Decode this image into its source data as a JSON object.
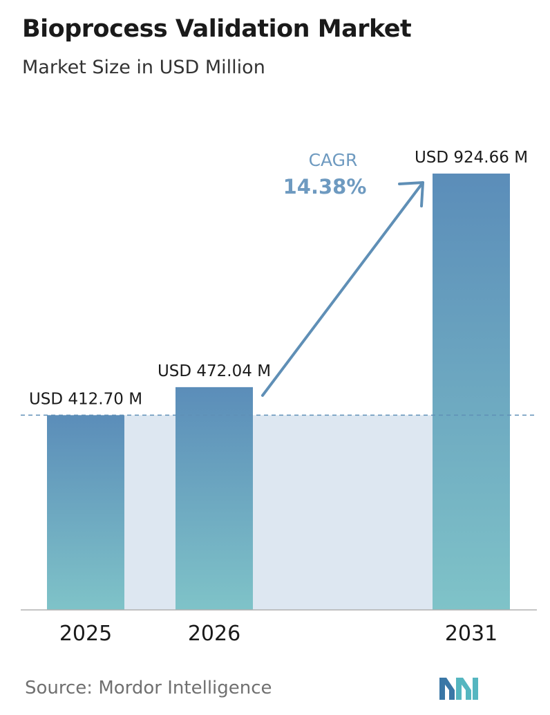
{
  "title": "Bioprocess Validation Market",
  "subtitle": "Market Size in USD Million",
  "source": "Source:  Mordor Intelligence",
  "colors": {
    "bar_top": "#5b8db9",
    "bar_bottom": "#7fc3c8",
    "band": "#dde7f1",
    "arrow": "#5f8fb6",
    "cagr_text": "#6e9ac0",
    "logo_left": "#3a77a6",
    "logo_right": "#55b6c0"
  },
  "logo": "mordor-intelligence-logo",
  "chart_data": {
    "type": "bar",
    "categories": [
      "2025",
      "2026",
      "2031"
    ],
    "values": [
      412.7,
      472.04,
      924.66
    ],
    "data_labels": [
      "USD 412.70 M",
      "USD 472.04 M",
      "USD 924.66 M"
    ],
    "annotation": {
      "label": "CAGR",
      "value": "14.38%"
    },
    "title": "Bioprocess Validation Market",
    "subtitle": "Market Size in USD Million",
    "xlabel": "",
    "ylabel": "",
    "grid": false,
    "reference_line": 412.7
  }
}
